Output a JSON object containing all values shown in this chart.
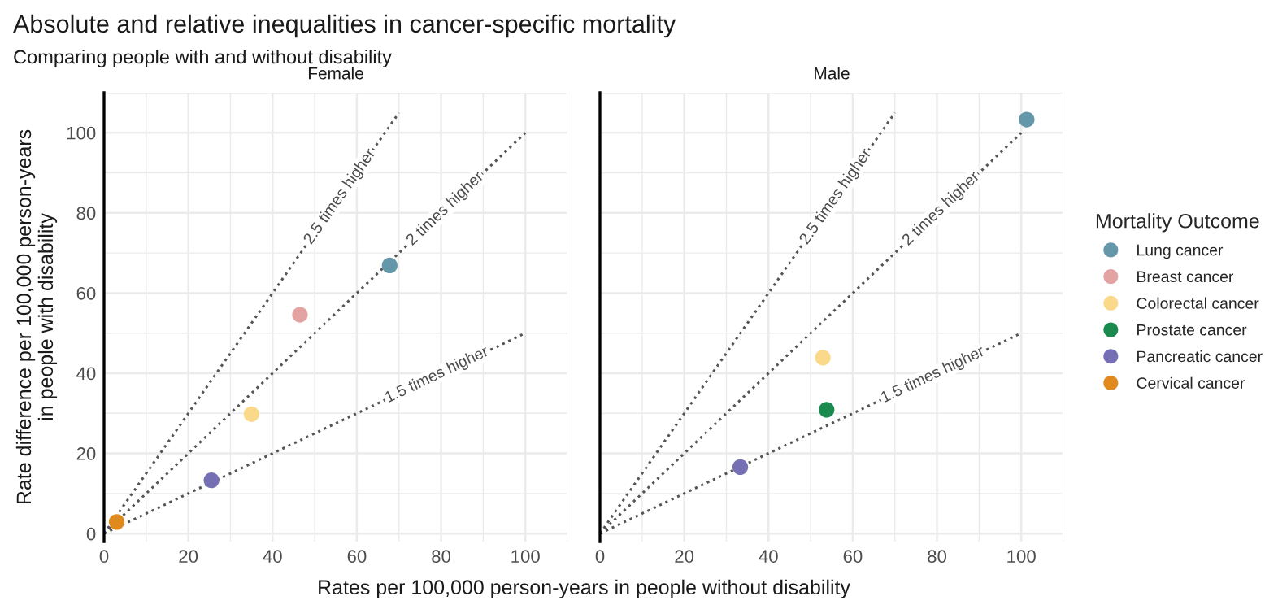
{
  "chart_data": [
    {
      "type": "scatter",
      "title": "Female",
      "legend_title": "Mortality Outcome",
      "legend": "right",
      "ylabel": "Rate difference per 100,000 person-years\nin people with disability",
      "xlabel": "Rates per 100,000 person-years in people without disability",
      "annotations": [
        "Absolute and relative inequalities in cancer-specific mortality",
        "Comparing people with and without disability",
        {
          "text": "2.5 times higher",
          "x": 56,
          "y": 84
        },
        {
          "text": "2 times higher",
          "x": 81,
          "y": 81
        },
        {
          "text": "1.5 times higher",
          "x": 79,
          "y": 39.5
        }
      ],
      "xlim": [
        0,
        110
      ],
      "ylim": [
        -2,
        110
      ],
      "xticks": [
        0,
        20,
        40,
        60,
        80,
        100
      ],
      "yticks": [
        0,
        20,
        40,
        60,
        80,
        100
      ],
      "grid": true,
      "series": [
        {
          "name": "Lung cancer",
          "color": "#6597ab",
          "x": [
            67.8
          ],
          "values": [
            66.9
          ]
        },
        {
          "name": "Breast cancer",
          "color": "#e3a3a3",
          "x": [
            46.5
          ],
          "values": [
            54.6
          ]
        },
        {
          "name": "Colorectal cancer",
          "color": "#fbd98a",
          "x": [
            35
          ],
          "values": [
            29.8
          ]
        },
        {
          "name": "Pancreatic cancer",
          "color": "#7570b3",
          "x": [
            25.5
          ],
          "values": [
            13.3
          ]
        },
        {
          "name": "Cervical cancer",
          "color": "#e08a1e",
          "x": [
            3
          ],
          "values": [
            2.9
          ]
        },
        {
          "type": "line",
          "color": "#555555",
          "line_style": "dotted",
          "x": [
            0,
            70
          ],
          "values": [
            0,
            105
          ]
        },
        {
          "type": "line",
          "color": "#555555",
          "line_style": "dotted",
          "x": [
            0,
            100
          ],
          "values": [
            0,
            100
          ]
        },
        {
          "type": "line",
          "color": "#555555",
          "line_style": "dotted",
          "x": [
            0,
            100
          ],
          "values": [
            0,
            50
          ]
        }
      ]
    },
    {
      "type": "scatter",
      "title": "Male",
      "tick_labels": "x",
      "annotations": [
        {
          "text": "2.5 times higher",
          "x": 56,
          "y": 84
        },
        {
          "text": "2 times higher",
          "x": 81,
          "y": 81
        },
        {
          "text": "1.5 times higher",
          "x": 79,
          "y": 39.5
        }
      ],
      "xlim": [
        0,
        110
      ],
      "ylim": [
        -2,
        110
      ],
      "xticks": [
        0,
        20,
        40,
        60,
        80,
        100
      ],
      "yticks": [
        0,
        20,
        40,
        60,
        80,
        100
      ],
      "grid": true,
      "series": [
        {
          "name": "Lung cancer",
          "color": "#6597ab",
          "x": [
            101.3
          ],
          "values": [
            103.3
          ]
        },
        {
          "name": "Colorectal cancer",
          "color": "#fbd98a",
          "x": [
            52.9
          ],
          "values": [
            43.9
          ]
        },
        {
          "name": "Prostate cancer",
          "color": "#1b8a4f",
          "x": [
            53.8
          ],
          "values": [
            30.9
          ]
        },
        {
          "name": "Pancreatic cancer",
          "color": "#7570b3",
          "x": [
            33.3
          ],
          "values": [
            16.6
          ]
        },
        {
          "type": "line",
          "color": "#555555",
          "line_style": "dotted",
          "x": [
            0,
            70
          ],
          "values": [
            0,
            105
          ]
        },
        {
          "type": "line",
          "color": "#555555",
          "line_style": "dotted",
          "x": [
            0,
            100
          ],
          "values": [
            0,
            100
          ]
        },
        {
          "type": "line",
          "color": "#555555",
          "line_style": "dotted",
          "x": [
            0,
            100
          ],
          "values": [
            0,
            50
          ]
        }
      ]
    }
  ]
}
